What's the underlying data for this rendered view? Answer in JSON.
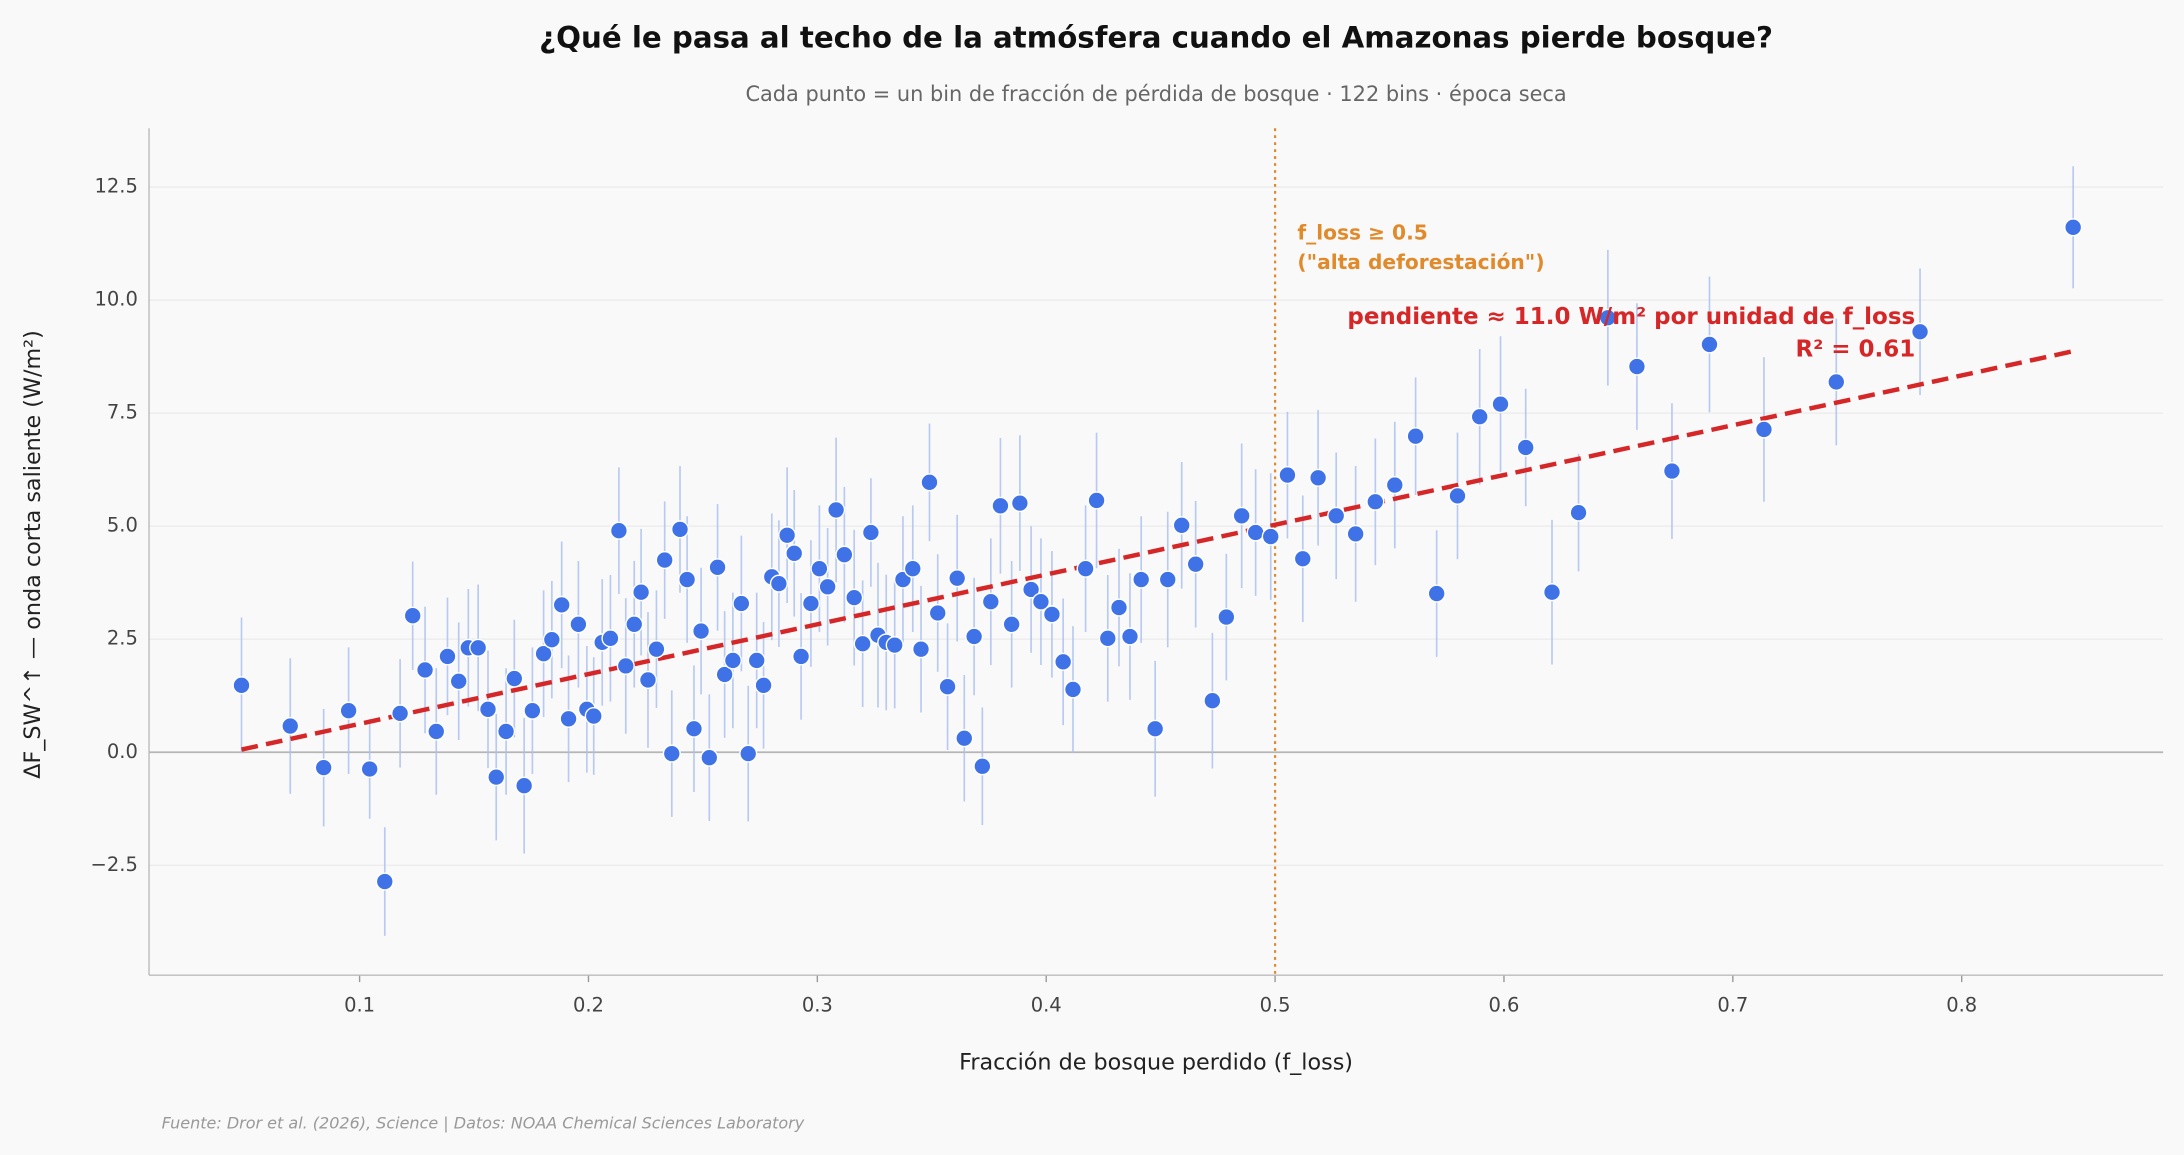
{
  "chart_data": {
    "type": "scatter",
    "title": "¿Qué le pasa al techo de la atmósfera cuando el Amazonas pierde bosque?",
    "subtitle": "Cada punto = un bin de fracción de pérdida de bosque · 122 bins · época seca",
    "x_label": "Fracción de bosque perdido (f_loss)",
    "y_label": "ΔF_SW^↑ — onda corta saliente (W/m²)",
    "source": "Fuente: Dror et al. (2026), Science | Datos: NOAA Chemical Sciences Laboratory",
    "color": "#3f72e6",
    "error_color": "#a9bff0",
    "grid": true,
    "xlim": [
      0.008,
      0.888
    ],
    "ylim": [
      -4.93,
      13.8
    ],
    "xticks": [
      0.1,
      0.2,
      0.3,
      0.4,
      0.5,
      0.6,
      0.7,
      0.8
    ],
    "yticks": [
      {
        "value": -2.5,
        "label": "−2.5"
      },
      {
        "value": 0,
        "label": "0.0"
      },
      2.5,
      {
        "value": 5,
        "label": "5.0"
      },
      7.5,
      {
        "value": 10,
        "label": "10.0"
      },
      12.5
    ],
    "zero_line": 0,
    "x": [
      0.0484,
      0.0697,
      0.0843,
      0.0952,
      0.1044,
      0.111,
      0.1177,
      0.1232,
      0.1286,
      0.1335,
      0.1384,
      0.1433,
      0.1475,
      0.1518,
      0.1561,
      0.1597,
      0.164,
      0.1676,
      0.1719,
      0.1755,
      0.1804,
      0.184,
      0.1883,
      0.1913,
      0.1956,
      0.1993,
      0.2023,
      0.206,
      0.2096,
      0.2133,
      0.2163,
      0.22,
      0.223,
      0.226,
      0.2297,
      0.2333,
      0.2364,
      0.24,
      0.2431,
      0.2461,
      0.2492,
      0.2528,
      0.2564,
      0.2595,
      0.2631,
      0.2668,
      0.2698,
      0.2735,
      0.2765,
      0.2801,
      0.2832,
      0.2868,
      0.2899,
      0.2929,
      0.2972,
      0.3009,
      0.3045,
      0.3082,
      0.3118,
      0.3161,
      0.3198,
      0.3234,
      0.3265,
      0.3301,
      0.3338,
      0.3374,
      0.3417,
      0.3453,
      0.349,
      0.3526,
      0.3569,
      0.3611,
      0.3642,
      0.3685,
      0.3721,
      0.3758,
      0.38,
      0.3849,
      0.3885,
      0.3934,
      0.3977,
      0.4025,
      0.4074,
      0.4117,
      0.4172,
      0.422,
      0.4269,
      0.4318,
      0.4366,
      0.4415,
      0.4476,
      0.4531,
      0.4592,
      0.4653,
      0.4726,
      0.4787,
      0.4854,
      0.4915,
      0.4981,
      0.5054,
      0.5121,
      0.5188,
      0.5267,
      0.5352,
      0.5438,
      0.5523,
      0.5614,
      0.5706,
      0.5797,
      0.5894,
      0.5985,
      0.6095,
      0.621,
      0.6326,
      0.6454,
      0.6581,
      0.6734,
      0.6898,
      0.7136,
      0.7452,
      0.7818,
      0.8487
    ],
    "values": [
      1.48,
      0.58,
      -0.34,
      0.92,
      -0.37,
      -2.86,
      0.86,
      3.02,
      1.82,
      0.46,
      2.12,
      1.57,
      2.31,
      2.31,
      0.95,
      -0.55,
      0.46,
      1.63,
      -0.74,
      0.92,
      2.18,
      2.49,
      3.26,
      0.74,
      2.83,
      0.95,
      0.8,
      2.43,
      2.52,
      4.9,
      1.91,
      2.83,
      3.54,
      1.6,
      2.28,
      4.25,
      -0.03,
      4.93,
      3.82,
      0.52,
      2.68,
      -0.12,
      4.09,
      1.72,
      2.03,
      3.29,
      -0.03,
      2.03,
      1.48,
      3.88,
      3.73,
      4.8,
      4.4,
      2.12,
      3.29,
      4.06,
      3.66,
      5.36,
      4.37,
      3.42,
      2.4,
      4.86,
      2.59,
      2.43,
      2.37,
      3.82,
      4.06,
      2.28,
      5.97,
      3.08,
      1.45,
      3.85,
      0.31,
      2.56,
      -0.31,
      3.33,
      5.45,
      2.83,
      5.51,
      3.6,
      3.33,
      3.05,
      2.0,
      1.39,
      4.06,
      5.57,
      2.52,
      3.2,
      2.56,
      3.82,
      0.52,
      3.82,
      5.02,
      4.16,
      1.14,
      2.99,
      5.23,
      4.86,
      4.77,
      6.13,
      4.28,
      6.07,
      5.23,
      4.83,
      5.54,
      5.91,
      6.99,
      3.51,
      5.67,
      7.42,
      7.7,
      6.74,
      3.54,
      5.3,
      9.61,
      8.53,
      6.22,
      9.02,
      7.14,
      8.19,
      9.3,
      11.61
    ],
    "errors": [
      1.5,
      1.5,
      1.3,
      1.4,
      1.1,
      1.2,
      1.2,
      1.2,
      1.4,
      1.4,
      1.3,
      1.3,
      1.3,
      1.4,
      1.3,
      1.4,
      1.4,
      1.3,
      1.5,
      1.4,
      1.4,
      1.3,
      1.4,
      1.4,
      1.4,
      1.4,
      1.3,
      1.4,
      1.4,
      1.4,
      1.5,
      1.4,
      1.4,
      1.5,
      1.3,
      1.3,
      1.4,
      1.4,
      1.4,
      1.4,
      1.4,
      1.4,
      1.4,
      1.4,
      1.5,
      1.5,
      1.5,
      1.5,
      1.4,
      1.4,
      1.4,
      1.5,
      1.4,
      1.4,
      1.4,
      1.4,
      1.3,
      1.6,
      1.5,
      1.5,
      1.4,
      1.2,
      1.6,
      1.5,
      1.4,
      1.4,
      1.4,
      1.4,
      1.3,
      1.3,
      1.4,
      1.4,
      1.4,
      1.3,
      1.3,
      1.4,
      1.5,
      1.4,
      1.5,
      1.4,
      1.4,
      1.4,
      1.4,
      1.4,
      1.4,
      1.5,
      1.4,
      1.3,
      1.4,
      1.4,
      1.5,
      1.5,
      1.4,
      1.4,
      1.5,
      1.4,
      1.6,
      1.4,
      1.4,
      1.4,
      1.4,
      1.5,
      1.4,
      1.5,
      1.4,
      1.4,
      1.3,
      1.4,
      1.4,
      1.5,
      1.5,
      1.3,
      1.6,
      1.3,
      1.5,
      1.4,
      1.5,
      1.5,
      1.6,
      1.4,
      1.4,
      1.35
    ],
    "fit": {
      "color": "#d62728",
      "x": [
        0.0484,
        0.8487
      ],
      "y": [
        0.06,
        8.87
      ]
    },
    "threshold": {
      "x": 0.5,
      "color": "#e08a2b",
      "label": [
        "f_loss ≥ 0.5",
        "(\"alta deforestación\")"
      ]
    },
    "annotations": [
      "pendiente ≈ 11.0 W/m² por unidad de f_loss",
      "R² = 0.61"
    ]
  }
}
